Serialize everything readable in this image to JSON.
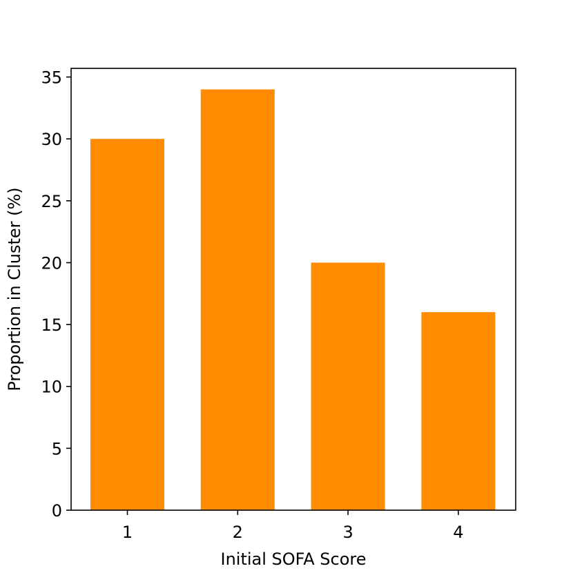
{
  "chart_data": {
    "type": "bar",
    "categories": [
      "1",
      "2",
      "3",
      "4"
    ],
    "values": [
      30,
      34,
      20,
      16
    ],
    "xlabel": "Initial SOFA Score",
    "ylabel": "Proportion in Cluster (%)",
    "ylim": [
      0,
      35.7
    ],
    "yticks": [
      "0",
      "5",
      "10",
      "15",
      "20",
      "25",
      "30",
      "35"
    ],
    "bar_color": "#ff8c00",
    "grid": false
  }
}
